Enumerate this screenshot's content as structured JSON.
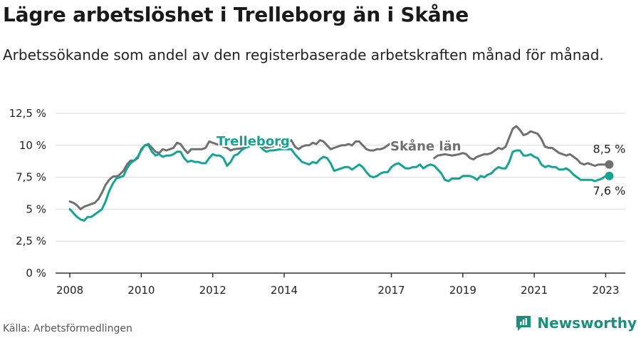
{
  "title": "Lägre arbetslöshet i Trelleborg än i Skåne",
  "subtitle": "Arbetssökande som andel av den registerbaserade arbetskraften månad för månad.",
  "source": "Källa: Arbetsförmedlingen",
  "brand": "Newsworthy",
  "colors": {
    "trelleborg": "#16a394",
    "skane": "#707070",
    "grid": "#d9d9d9",
    "axis": "#333333",
    "brand": "#1b8f7c"
  },
  "chart_data": {
    "type": "line",
    "title": "Lägre arbetslöshet i Trelleborg än i Skåne",
    "xlabel": "",
    "ylabel": "",
    "ylim": [
      0,
      12.5
    ],
    "xlim": [
      2007.6,
      2023.55
    ],
    "grid": true,
    "y_ticks": [
      {
        "value": 0,
        "label": "0 %"
      },
      {
        "value": 2.5,
        "label": "2,5 %"
      },
      {
        "value": 5,
        "label": "5 %"
      },
      {
        "value": 7.5,
        "label": "7,5 %"
      },
      {
        "value": 10,
        "label": "10 %"
      },
      {
        "value": 12.5,
        "label": "12,5 %"
      }
    ],
    "x_ticks": [
      {
        "value": 2008,
        "label": "2008"
      },
      {
        "value": 2010,
        "label": "2010"
      },
      {
        "value": 2012,
        "label": "2012"
      },
      {
        "value": 2014,
        "label": "2014"
      },
      {
        "value": 2017,
        "label": "2017"
      },
      {
        "value": 2019,
        "label": "2019"
      },
      {
        "value": 2021,
        "label": "2021"
      },
      {
        "value": 2023,
        "label": "2023"
      }
    ],
    "series": [
      {
        "name": "Skåne län",
        "label": "Skåne län",
        "end_label": "8,5 %",
        "points": [
          [
            2008.0,
            5.6
          ],
          [
            2008.1,
            5.5
          ],
          [
            2008.2,
            5.3
          ],
          [
            2008.3,
            5.0
          ],
          [
            2008.4,
            5.2
          ],
          [
            2008.5,
            5.3
          ],
          [
            2008.6,
            5.4
          ],
          [
            2008.7,
            5.5
          ],
          [
            2008.8,
            5.8
          ],
          [
            2008.9,
            6.3
          ],
          [
            2009.0,
            6.9
          ],
          [
            2009.1,
            7.3
          ],
          [
            2009.2,
            7.55
          ],
          [
            2009.35,
            7.6
          ],
          [
            2009.5,
            8.0
          ],
          [
            2009.6,
            8.5
          ],
          [
            2009.7,
            8.8
          ],
          [
            2009.8,
            8.8
          ],
          [
            2009.9,
            9.0
          ],
          [
            2010.0,
            9.7
          ],
          [
            2010.1,
            10.0
          ],
          [
            2010.2,
            10.1
          ],
          [
            2010.3,
            9.8
          ],
          [
            2010.4,
            9.5
          ],
          [
            2010.5,
            9.4
          ],
          [
            2010.6,
            9.7
          ],
          [
            2010.7,
            9.6
          ],
          [
            2010.8,
            9.7
          ],
          [
            2010.9,
            9.8
          ],
          [
            2011.0,
            10.2
          ],
          [
            2011.1,
            10.1
          ],
          [
            2011.2,
            9.7
          ],
          [
            2011.3,
            9.4
          ],
          [
            2011.4,
            9.7
          ],
          [
            2011.5,
            9.7
          ],
          [
            2011.6,
            9.7
          ],
          [
            2011.7,
            9.7
          ],
          [
            2011.8,
            9.8
          ],
          [
            2011.9,
            10.3
          ],
          [
            2012.4,
            9.8
          ],
          [
            2012.5,
            9.6
          ],
          [
            2012.6,
            9.7
          ],
          [
            2012.9,
            9.8
          ],
          [
            2013.1,
            10.0
          ],
          [
            2013.3,
            10.0
          ],
          [
            2013.5,
            9.8
          ],
          [
            2013.8,
            10.0
          ],
          [
            2014.0,
            10.0
          ],
          [
            2014.2,
            10.4
          ],
          [
            2014.3,
            9.9
          ],
          [
            2014.4,
            9.7
          ],
          [
            2014.5,
            9.9
          ],
          [
            2014.6,
            10.0
          ],
          [
            2014.7,
            10.0
          ],
          [
            2014.8,
            10.2
          ],
          [
            2014.9,
            10.1
          ],
          [
            2015.0,
            10.4
          ],
          [
            2015.1,
            10.3
          ],
          [
            2015.2,
            10.0
          ],
          [
            2015.3,
            9.7
          ],
          [
            2015.4,
            9.8
          ],
          [
            2015.5,
            9.9
          ],
          [
            2015.6,
            10.0
          ],
          [
            2015.7,
            10.0
          ],
          [
            2015.8,
            10.1
          ],
          [
            2015.9,
            10.0
          ],
          [
            2016.0,
            10.3
          ],
          [
            2016.1,
            10.3
          ],
          [
            2016.2,
            10.0
          ],
          [
            2016.3,
            9.7
          ],
          [
            2016.4,
            9.6
          ],
          [
            2016.5,
            9.6
          ],
          [
            2016.6,
            9.7
          ],
          [
            2016.7,
            9.7
          ],
          [
            2016.8,
            9.8
          ],
          [
            2017.0,
            10.2
          ],
          [
            2018.2,
            9.0
          ],
          [
            2018.3,
            9.2
          ],
          [
            2018.5,
            9.3
          ],
          [
            2018.7,
            9.2
          ],
          [
            2018.9,
            9.3
          ],
          [
            2019.0,
            9.4
          ],
          [
            2019.1,
            9.3
          ],
          [
            2019.2,
            9.0
          ],
          [
            2019.3,
            8.9
          ],
          [
            2019.4,
            9.1
          ],
          [
            2019.5,
            9.2
          ],
          [
            2019.6,
            9.3
          ],
          [
            2019.7,
            9.3
          ],
          [
            2019.8,
            9.4
          ],
          [
            2019.9,
            9.6
          ],
          [
            2020.0,
            9.8
          ],
          [
            2020.1,
            9.7
          ],
          [
            2020.2,
            9.9
          ],
          [
            2020.3,
            10.6
          ],
          [
            2020.4,
            11.3
          ],
          [
            2020.5,
            11.5
          ],
          [
            2020.6,
            11.2
          ],
          [
            2020.7,
            10.8
          ],
          [
            2020.8,
            10.9
          ],
          [
            2020.9,
            11.1
          ],
          [
            2021.0,
            11.0
          ],
          [
            2021.1,
            10.9
          ],
          [
            2021.2,
            10.5
          ],
          [
            2021.3,
            9.9
          ],
          [
            2021.4,
            9.8
          ],
          [
            2021.5,
            9.8
          ],
          [
            2021.6,
            9.6
          ],
          [
            2021.7,
            9.4
          ],
          [
            2021.8,
            9.3
          ],
          [
            2021.9,
            9.2
          ],
          [
            2022.0,
            9.3
          ],
          [
            2022.1,
            9.1
          ],
          [
            2022.2,
            8.9
          ],
          [
            2022.3,
            8.6
          ],
          [
            2022.4,
            8.5
          ],
          [
            2022.5,
            8.6
          ],
          [
            2022.6,
            8.5
          ],
          [
            2022.7,
            8.4
          ],
          [
            2022.8,
            8.5
          ],
          [
            2022.9,
            8.5
          ],
          [
            2023.0,
            8.5
          ],
          [
            2023.1,
            8.5
          ]
        ]
      },
      {
        "name": "Trelleborg",
        "label": "Trelleborg",
        "end_label": "7,6 %",
        "points": [
          [
            2008.0,
            5.0
          ],
          [
            2008.1,
            4.7
          ],
          [
            2008.2,
            4.4
          ],
          [
            2008.3,
            4.2
          ],
          [
            2008.4,
            4.1
          ],
          [
            2008.5,
            4.4
          ],
          [
            2008.6,
            4.4
          ],
          [
            2008.7,
            4.6
          ],
          [
            2008.8,
            4.8
          ],
          [
            2008.9,
            5.0
          ],
          [
            2009.0,
            5.6
          ],
          [
            2009.1,
            6.4
          ],
          [
            2009.2,
            7.0
          ],
          [
            2009.3,
            7.4
          ],
          [
            2009.4,
            7.5
          ],
          [
            2009.5,
            7.6
          ],
          [
            2009.6,
            8.2
          ],
          [
            2009.7,
            8.6
          ],
          [
            2009.8,
            8.8
          ],
          [
            2009.9,
            9.1
          ],
          [
            2010.0,
            9.6
          ],
          [
            2010.1,
            10.0
          ],
          [
            2010.2,
            10.0
          ],
          [
            2010.3,
            9.5
          ],
          [
            2010.4,
            9.2
          ],
          [
            2010.5,
            9.3
          ],
          [
            2010.6,
            9.1
          ],
          [
            2010.7,
            9.2
          ],
          [
            2010.8,
            9.2
          ],
          [
            2010.9,
            9.3
          ],
          [
            2011.0,
            9.5
          ],
          [
            2011.1,
            9.5
          ],
          [
            2011.2,
            9.0
          ],
          [
            2011.3,
            8.7
          ],
          [
            2011.4,
            8.8
          ],
          [
            2011.5,
            8.7
          ],
          [
            2011.6,
            8.7
          ],
          [
            2011.7,
            8.6
          ],
          [
            2011.8,
            8.6
          ],
          [
            2011.9,
            9.0
          ],
          [
            2012.0,
            9.3
          ],
          [
            2012.1,
            9.2
          ],
          [
            2012.2,
            9.2
          ],
          [
            2012.3,
            9.0
          ],
          [
            2012.4,
            8.4
          ],
          [
            2012.5,
            8.7
          ],
          [
            2012.6,
            9.2
          ],
          [
            2012.7,
            9.3
          ],
          [
            2012.8,
            9.6
          ],
          [
            2012.9,
            9.8
          ],
          [
            2013.1,
            10.0
          ],
          [
            2013.3,
            10.0
          ],
          [
            2013.4,
            9.7
          ],
          [
            2013.5,
            9.5
          ],
          [
            2013.6,
            9.6
          ],
          [
            2013.7,
            9.6
          ],
          [
            2013.9,
            9.7
          ],
          [
            2014.1,
            9.7
          ],
          [
            2014.2,
            9.7
          ],
          [
            2014.3,
            9.3
          ],
          [
            2014.4,
            9.0
          ],
          [
            2014.5,
            8.7
          ],
          [
            2014.6,
            8.6
          ],
          [
            2014.7,
            8.5
          ],
          [
            2014.8,
            8.7
          ],
          [
            2014.9,
            8.6
          ],
          [
            2015.0,
            8.9
          ],
          [
            2015.1,
            9.1
          ],
          [
            2015.2,
            9.0
          ],
          [
            2015.3,
            8.6
          ],
          [
            2015.4,
            8.0
          ],
          [
            2015.5,
            8.1
          ],
          [
            2015.6,
            8.2
          ],
          [
            2015.7,
            8.3
          ],
          [
            2015.8,
            8.3
          ],
          [
            2015.9,
            8.1
          ],
          [
            2016.0,
            8.3
          ],
          [
            2016.1,
            8.5
          ],
          [
            2016.2,
            8.3
          ],
          [
            2016.3,
            7.9
          ],
          [
            2016.4,
            7.6
          ],
          [
            2016.5,
            7.5
          ],
          [
            2016.6,
            7.6
          ],
          [
            2016.7,
            7.8
          ],
          [
            2016.8,
            7.9
          ],
          [
            2016.9,
            7.9
          ],
          [
            2017.0,
            8.3
          ],
          [
            2017.1,
            8.5
          ],
          [
            2017.2,
            8.6
          ],
          [
            2017.3,
            8.4
          ],
          [
            2017.4,
            8.2
          ],
          [
            2017.5,
            8.2
          ],
          [
            2017.6,
            8.3
          ],
          [
            2017.7,
            8.3
          ],
          [
            2017.8,
            8.5
          ],
          [
            2017.9,
            8.2
          ],
          [
            2018.0,
            8.4
          ],
          [
            2018.1,
            8.5
          ],
          [
            2018.2,
            8.4
          ],
          [
            2018.3,
            8.1
          ],
          [
            2018.4,
            7.8
          ],
          [
            2018.5,
            7.3
          ],
          [
            2018.6,
            7.2
          ],
          [
            2018.7,
            7.4
          ],
          [
            2018.8,
            7.4
          ],
          [
            2018.9,
            7.4
          ],
          [
            2019.0,
            7.6
          ],
          [
            2019.1,
            7.6
          ],
          [
            2019.2,
            7.6
          ],
          [
            2019.3,
            7.5
          ],
          [
            2019.4,
            7.3
          ],
          [
            2019.5,
            7.6
          ],
          [
            2019.6,
            7.5
          ],
          [
            2019.7,
            7.7
          ],
          [
            2019.8,
            7.8
          ],
          [
            2019.9,
            8.1
          ],
          [
            2020.0,
            8.3
          ],
          [
            2020.1,
            8.2
          ],
          [
            2020.2,
            8.2
          ],
          [
            2020.3,
            8.7
          ],
          [
            2020.4,
            9.5
          ],
          [
            2020.5,
            9.6
          ],
          [
            2020.6,
            9.6
          ],
          [
            2020.7,
            9.2
          ],
          [
            2020.8,
            9.2
          ],
          [
            2020.9,
            9.3
          ],
          [
            2021.0,
            9.1
          ],
          [
            2021.1,
            9.0
          ],
          [
            2021.2,
            8.5
          ],
          [
            2021.3,
            8.3
          ],
          [
            2021.4,
            8.4
          ],
          [
            2021.5,
            8.3
          ],
          [
            2021.6,
            8.3
          ],
          [
            2021.7,
            8.1
          ],
          [
            2021.8,
            8.1
          ],
          [
            2021.9,
            8.2
          ],
          [
            2022.0,
            8.0
          ],
          [
            2022.1,
            7.7
          ],
          [
            2022.2,
            7.5
          ],
          [
            2022.3,
            7.3
          ],
          [
            2022.4,
            7.3
          ],
          [
            2022.5,
            7.3
          ],
          [
            2022.6,
            7.3
          ],
          [
            2022.7,
            7.2
          ],
          [
            2022.8,
            7.3
          ],
          [
            2022.9,
            7.4
          ],
          [
            2023.0,
            7.6
          ],
          [
            2023.1,
            7.6
          ]
        ]
      }
    ]
  }
}
